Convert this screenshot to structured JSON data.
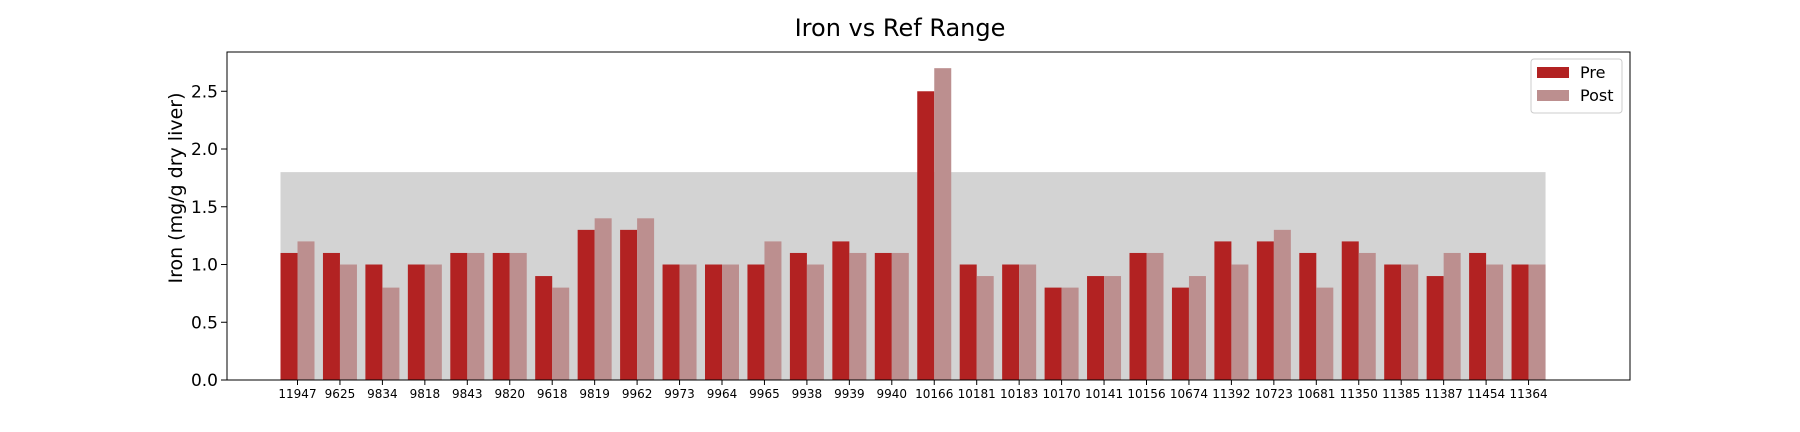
{
  "chart_data": {
    "type": "bar",
    "title": "Iron vs Ref Range",
    "xlabel": "",
    "ylabel": "Iron (mg/g dry liver)",
    "ylim": [
      0,
      2.84
    ],
    "yticks": [
      "0.0",
      "0.5",
      "1.0",
      "1.5",
      "2.0",
      "2.5"
    ],
    "grid": false,
    "legend_position": "top-right",
    "reference_range": {
      "low": 0,
      "high": 1.8,
      "color": "#d3d3d3"
    },
    "categories": [
      "11947",
      "9625",
      "9834",
      "9818",
      "9843",
      "9820",
      "9618",
      "9819",
      "9962",
      "9973",
      "9964",
      "9965",
      "9938",
      "9939",
      "9940",
      "10166",
      "10181",
      "10183",
      "10170",
      "10141",
      "10156",
      "10674",
      "11392",
      "10723",
      "10681",
      "11350",
      "11385",
      "11387",
      "11454",
      "11364"
    ],
    "series": [
      {
        "name": "Pre",
        "color": "#b22222",
        "values": [
          1.1,
          1.1,
          1.0,
          1.0,
          1.1,
          1.1,
          0.9,
          1.3,
          1.3,
          1.0,
          1.0,
          1.0,
          1.1,
          1.2,
          1.1,
          2.5,
          1.0,
          1.0,
          0.8,
          0.9,
          1.1,
          0.8,
          1.2,
          1.2,
          1.1,
          1.2,
          1.0,
          0.9,
          1.1,
          1.0
        ]
      },
      {
        "name": "Post",
        "color": "#bc8f8f",
        "values": [
          1.2,
          1.0,
          0.8,
          1.0,
          1.1,
          1.1,
          0.8,
          1.4,
          1.4,
          1.0,
          1.0,
          1.2,
          1.0,
          1.1,
          1.1,
          2.7,
          0.9,
          1.0,
          0.8,
          0.9,
          1.1,
          0.9,
          1.0,
          1.3,
          0.8,
          1.1,
          1.0,
          1.1,
          1.0,
          1.0
        ]
      }
    ]
  }
}
